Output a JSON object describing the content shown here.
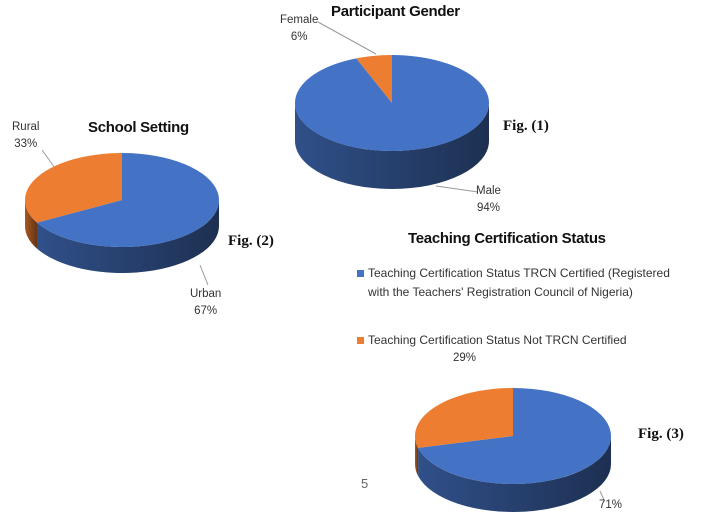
{
  "chart_data": [
    {
      "type": "pie",
      "id": "gender",
      "title": "Participant Gender",
      "figure": "Fig. (1)",
      "slices": [
        {
          "label": "Male",
          "value": 94,
          "display": "94%",
          "color": "#4472C4"
        },
        {
          "label": "Female",
          "value": 6,
          "display": "6%",
          "color": "#ED7D31"
        }
      ]
    },
    {
      "type": "pie",
      "id": "setting",
      "title": "School Setting",
      "figure": "Fig. (2)",
      "slices": [
        {
          "label": "Urban",
          "value": 67,
          "display": "67%",
          "color": "#4472C4"
        },
        {
          "label": "Rural",
          "value": 33,
          "display": "33%",
          "color": "#ED7D31"
        }
      ]
    },
    {
      "type": "pie",
      "id": "cert",
      "title": "Teaching Certification Status",
      "figure": "Fig. (3)",
      "slices": [
        {
          "label": "Teaching Certification Status TRCN Certified (Registered with the Teachers' Registration Council of Nigeria)",
          "value": 71,
          "display": "71%",
          "color": "#4472C4"
        },
        {
          "label": "Teaching Certification Status Not TRCN Certified",
          "value": 29,
          "display": "29%",
          "color": "#ED7D31"
        }
      ],
      "legend": "right-top"
    }
  ],
  "page_number": "5"
}
